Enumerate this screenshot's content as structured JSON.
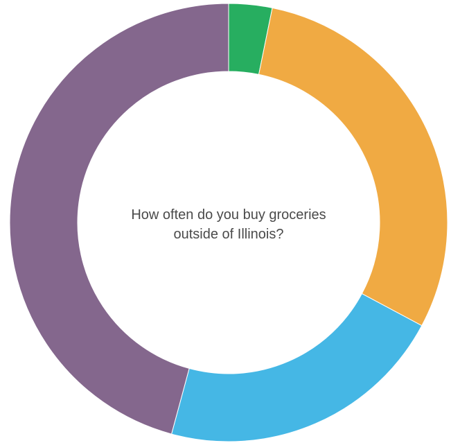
{
  "chart_data": {
    "type": "pie",
    "subtype": "donut",
    "title_lines": [
      "How often do you buy groceries",
      "outside of Illinois?"
    ],
    "slices": [
      {
        "value": 3.2,
        "color": "#27ae60"
      },
      {
        "value": 29.6,
        "color": "#f0aa43"
      },
      {
        "value": 21.4,
        "color": "#45b7e5"
      },
      {
        "value": 45.8,
        "color": "#84678d"
      }
    ],
    "start_angle_deg": 0,
    "direction": "clockwise",
    "legend": "none"
  }
}
